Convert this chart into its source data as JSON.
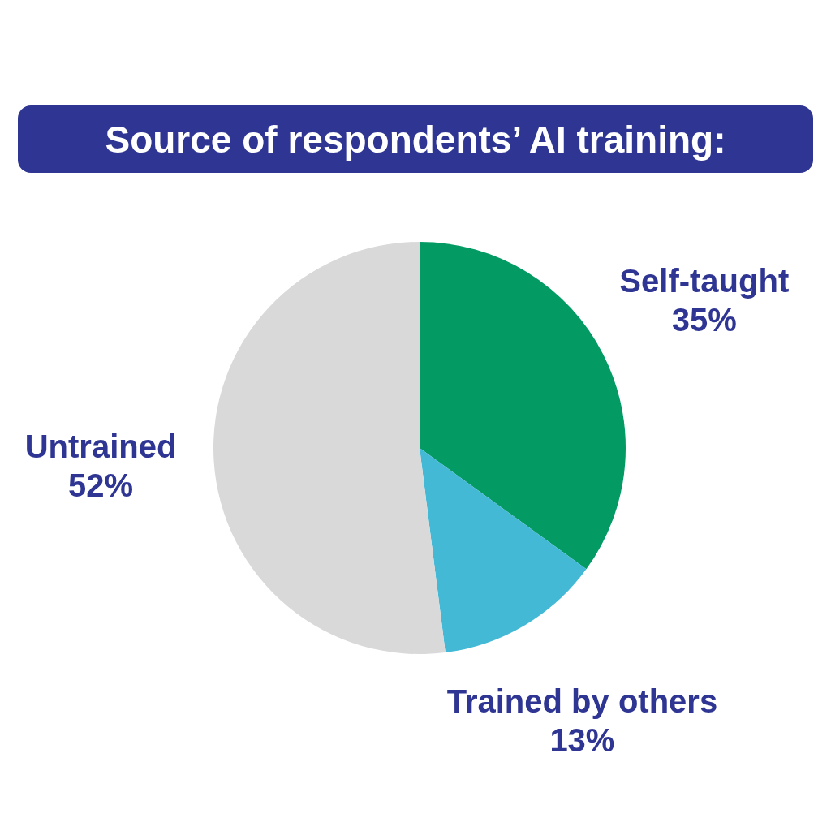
{
  "chart_data": {
    "type": "pie",
    "title": "Source of respondents’ AI training:",
    "categories": [
      "Self-taught",
      "Trained by others",
      "Untrained"
    ],
    "values": [
      35,
      13,
      52
    ],
    "colors": [
      "#039a64",
      "#43b9d6",
      "#d9d9d9"
    ],
    "value_labels": [
      "35%",
      "13%",
      "52%"
    ],
    "legend": false
  }
}
